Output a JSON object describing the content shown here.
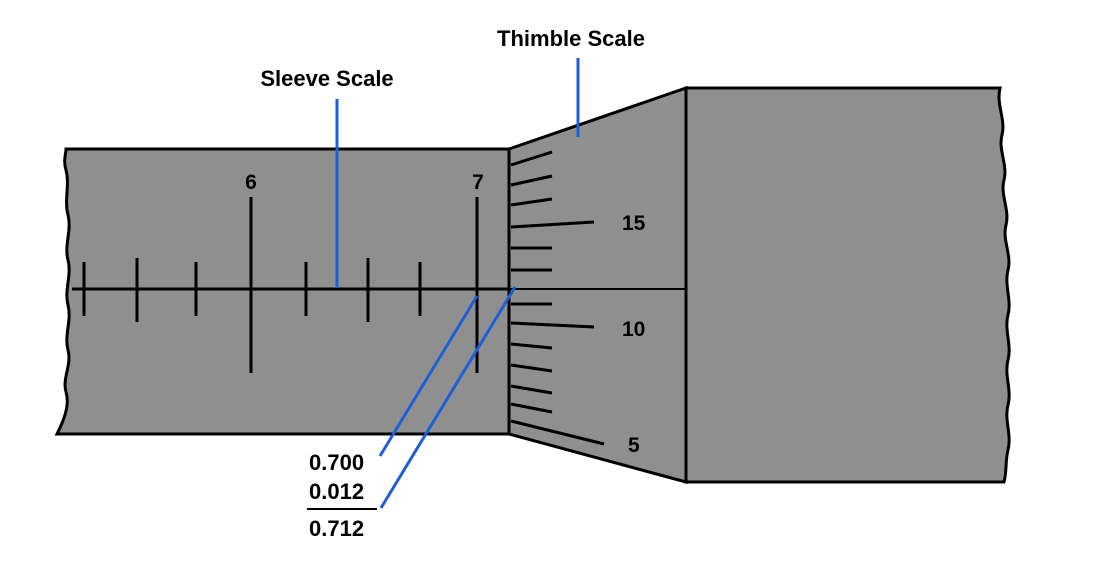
{
  "labels": {
    "thimble_scale": "Thimble Scale",
    "sleeve_scale": "Sleeve Scale"
  },
  "sleeve": {
    "major_numbers": [
      "6",
      "7"
    ]
  },
  "thimble": {
    "numbers": [
      "15",
      "10",
      "5"
    ]
  },
  "calculation": {
    "line1": "0.700",
    "line2": "0.012",
    "result": "0.712"
  },
  "colors": {
    "body_gray": "#8f8f8f",
    "callout_blue": "#1f5fd6",
    "ink": "#000000"
  }
}
